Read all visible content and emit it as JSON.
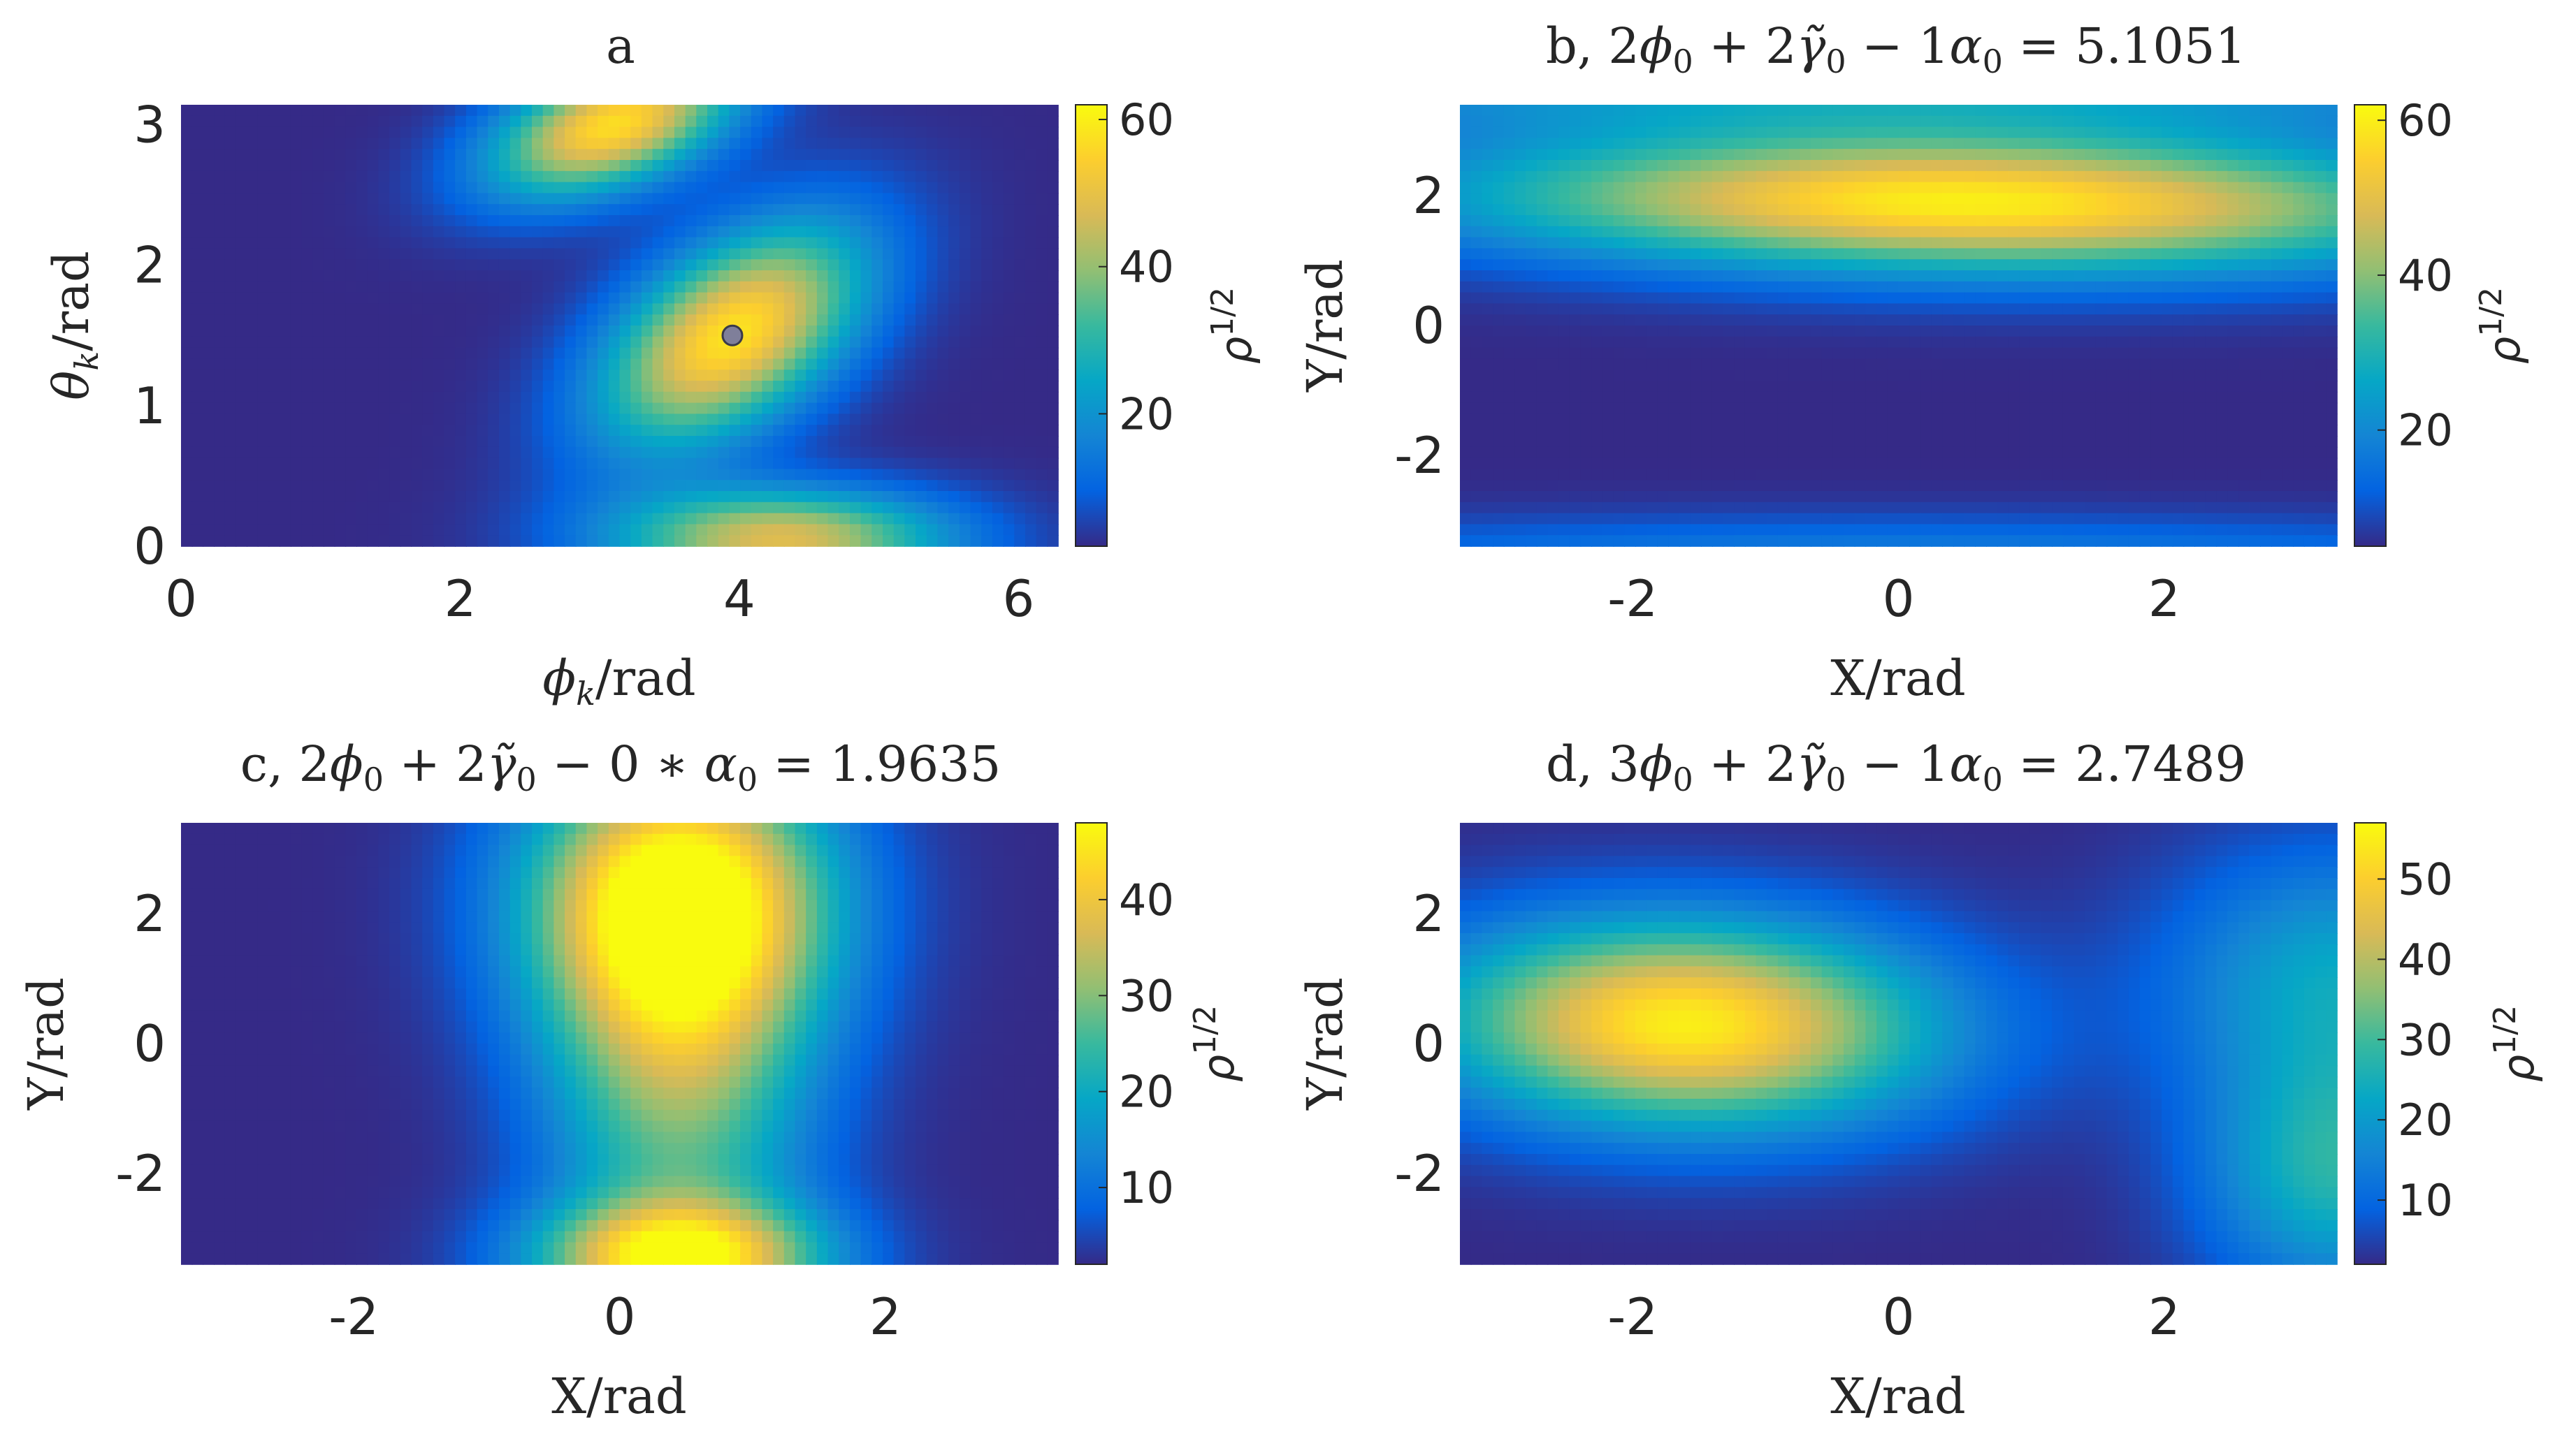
{
  "colormap": "parula",
  "colormap_stops": [
    "#352a87",
    "#0363e1",
    "#1485d4",
    "#06a7c6",
    "#38b99e",
    "#92bf73",
    "#d9ba56",
    "#fcce2e",
    "#f9fb0e"
  ],
  "marker_color": "#7f7f9a",
  "chart_data": [
    {
      "panel": "a",
      "type": "heatmap",
      "title": "a",
      "xlabel": "φk/rad",
      "ylabel": "θk/rad",
      "xlim": [
        0,
        6.2832
      ],
      "ylim": [
        0,
        3.1416
      ],
      "xticks": [
        "0",
        "2",
        "4",
        "6"
      ],
      "xtick_values": [
        0,
        2,
        4,
        6
      ],
      "yticks": [
        "0",
        "1",
        "2",
        "3"
      ],
      "ytick_values": [
        0,
        1,
        2,
        3
      ],
      "colorbar": {
        "label": "ρ1/2",
        "range": [
          2,
          62
        ],
        "ticks": [
          "20",
          "40",
          "60"
        ],
        "tick_values": [
          20,
          40,
          60
        ]
      },
      "blobs": [
        {
          "x": 3.95,
          "y": 1.5,
          "sx": 0.75,
          "sy": 0.42,
          "angle_deg": 35,
          "value": 58
        },
        {
          "x": 3.1,
          "y": 3.0,
          "sx": 0.65,
          "sy": 0.3,
          "angle_deg": 20,
          "value": 57
        },
        {
          "x": 4.3,
          "y": 0.05,
          "sx": 0.85,
          "sy": 0.25,
          "angle_deg": 0,
          "value": 48
        }
      ],
      "marker": {
        "x": 3.95,
        "y": 1.5
      }
    },
    {
      "panel": "b",
      "type": "heatmap",
      "title": "b, 2φ0 + 2γ̃0 − 1α0 = 5.1051",
      "xlabel": "X/rad",
      "ylabel": "Y/rad",
      "xlim": [
        -3.3,
        3.3
      ],
      "ylim": [
        -3.4,
        3.4
      ],
      "xticks": [
        "-2",
        "0",
        "2"
      ],
      "xtick_values": [
        -2,
        0,
        2
      ],
      "yticks": [
        "-2",
        "0",
        "2"
      ],
      "ytick_values": [
        -2,
        0,
        2
      ],
      "colorbar": {
        "label": "ρ1/2",
        "range": [
          5,
          62
        ],
        "ticks": [
          "20",
          "40",
          "60"
        ],
        "tick_values": [
          20,
          40,
          60
        ]
      },
      "blobs": [
        {
          "x": 0.5,
          "y": 1.9,
          "sx": 2.6,
          "sy": 0.75,
          "angle_deg": -2,
          "value": 60
        },
        {
          "x": 0,
          "y": 3.6,
          "sx": 4,
          "sy": 0.5,
          "angle_deg": 0,
          "value": 22
        },
        {
          "x": 0,
          "y": -3.6,
          "sx": 4,
          "sy": 0.45,
          "angle_deg": 0,
          "value": 18
        }
      ]
    },
    {
      "panel": "c",
      "type": "heatmap",
      "title": "c, 2φ0 + 2γ̃0 − 0 ∗ α0 = 1.9635",
      "xlabel": "X/rad",
      "ylabel": "Y/rad",
      "xlim": [
        -3.3,
        3.3
      ],
      "ylim": [
        -3.4,
        3.4
      ],
      "xticks": [
        "-2",
        "0",
        "2"
      ],
      "xtick_values": [
        -2,
        0,
        2
      ],
      "yticks": [
        "-2",
        "0",
        "2"
      ],
      "ytick_values": [
        -2,
        0,
        2
      ],
      "colorbar": {
        "label": "ρ1/2",
        "range": [
          2,
          48
        ],
        "ticks": [
          "10",
          "20",
          "30",
          "40"
        ],
        "tick_values": [
          10,
          20,
          30,
          40
        ]
      },
      "blobs": [
        {
          "x": 0.45,
          "y": 2.2,
          "sx": 0.8,
          "sy": 1.5,
          "angle_deg": 0,
          "value": 46
        },
        {
          "x": 0.45,
          "y": -3.3,
          "sx": 0.75,
          "sy": 0.6,
          "angle_deg": 0,
          "value": 40
        },
        {
          "x": 0.45,
          "y": -0.5,
          "sx": 0.7,
          "sy": 2.5,
          "angle_deg": 0,
          "value": 28
        }
      ]
    },
    {
      "panel": "d",
      "type": "heatmap",
      "title": "d, 3φ0 + 2γ̃0 − 1α0 = 2.7489",
      "xlabel": "X/rad",
      "ylabel": "Y/rad",
      "xlim": [
        -3.3,
        3.3
      ],
      "ylim": [
        -3.4,
        3.4
      ],
      "xticks": [
        "-2",
        "0",
        "2"
      ],
      "xtick_values": [
        -2,
        0,
        2
      ],
      "yticks": [
        "-2",
        "0",
        "2"
      ],
      "ytick_values": [
        -2,
        0,
        2
      ],
      "colorbar": {
        "label": "ρ1/2",
        "range": [
          2,
          57
        ],
        "ticks": [
          "10",
          "20",
          "30",
          "40",
          "50"
        ],
        "tick_values": [
          10,
          20,
          30,
          40,
          50
        ]
      },
      "blobs": [
        {
          "x": -1.6,
          "y": 0.3,
          "sx": 1.3,
          "sy": 1.1,
          "angle_deg": -10,
          "value": 55
        },
        {
          "x": 3.3,
          "y": 1.0,
          "sx": 0.9,
          "sy": 1.4,
          "angle_deg": 0,
          "value": 22
        },
        {
          "x": 3.3,
          "y": -2.0,
          "sx": 0.7,
          "sy": 1.3,
          "angle_deg": 0,
          "value": 26
        }
      ]
    }
  ]
}
